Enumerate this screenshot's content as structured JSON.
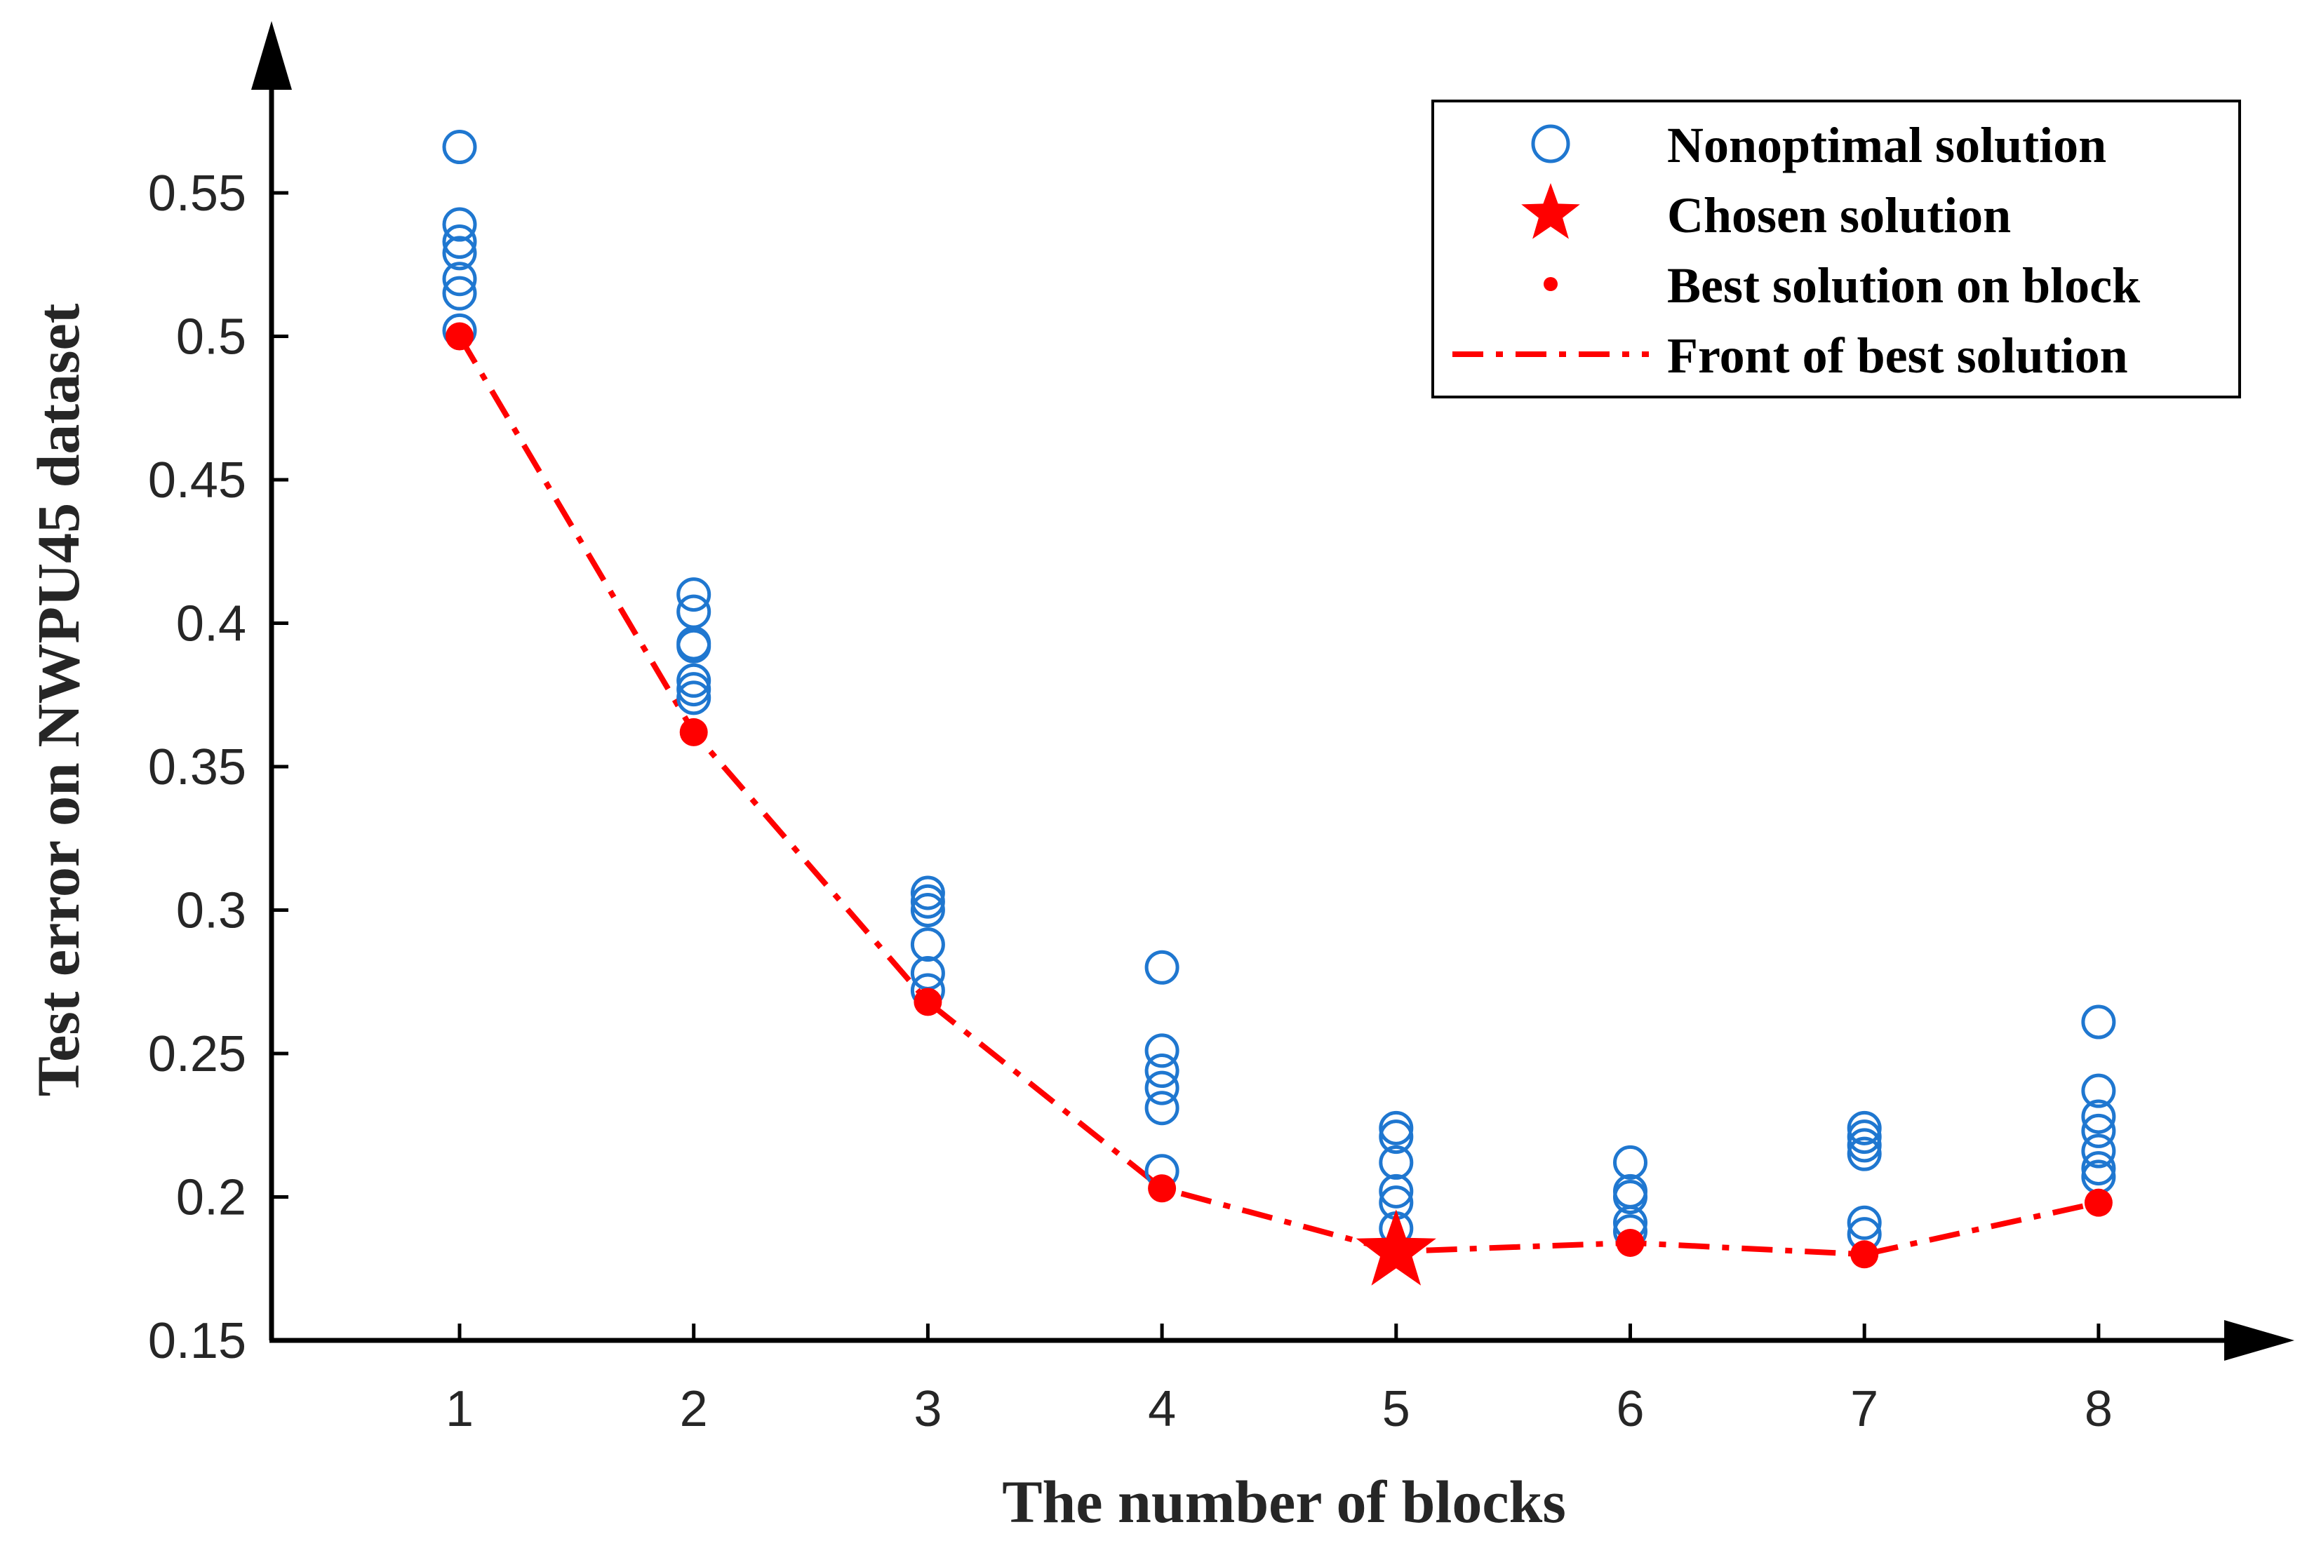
{
  "chart_data": {
    "type": "scatter",
    "title": "",
    "xlabel": "The number of blocks",
    "ylabel": "Test error on NWPU45 dataset",
    "xlim": [
      0.2,
      9.0
    ],
    "ylim": [
      0.15,
      0.59
    ],
    "x_ticks": [
      1,
      2,
      3,
      4,
      5,
      6,
      7,
      8
    ],
    "x_tick_labels": [
      "1",
      "2",
      "3",
      "4",
      "5",
      "6",
      "7",
      "8"
    ],
    "y_ticks": [
      0.15,
      0.2,
      0.25,
      0.3,
      0.35,
      0.4,
      0.45,
      0.5,
      0.55
    ],
    "y_tick_labels": [
      "0.15",
      "0.2",
      "0.25",
      "0.3",
      "0.35",
      "0.4",
      "0.45",
      "0.5",
      "0.55"
    ],
    "grid": false,
    "legend_position": "top-right",
    "series": [
      {
        "name": "Nonoptimal solution",
        "marker": "open-circle",
        "color": "#1f77d0",
        "points": [
          [
            1,
            0.566
          ],
          [
            1,
            0.539
          ],
          [
            1,
            0.533
          ],
          [
            1,
            0.529
          ],
          [
            1,
            0.52
          ],
          [
            1,
            0.515
          ],
          [
            1,
            0.502
          ],
          [
            2,
            0.41
          ],
          [
            2,
            0.404
          ],
          [
            2,
            0.393
          ],
          [
            2,
            0.392
          ],
          [
            2,
            0.38
          ],
          [
            2,
            0.377
          ],
          [
            2,
            0.374
          ],
          [
            3,
            0.306
          ],
          [
            3,
            0.303
          ],
          [
            3,
            0.3
          ],
          [
            3,
            0.288
          ],
          [
            3,
            0.278
          ],
          [
            3,
            0.272
          ],
          [
            4,
            0.28
          ],
          [
            4,
            0.251
          ],
          [
            4,
            0.244
          ],
          [
            4,
            0.238
          ],
          [
            4,
            0.231
          ],
          [
            4,
            0.209
          ],
          [
            5,
            0.224
          ],
          [
            5,
            0.221
          ],
          [
            5,
            0.212
          ],
          [
            5,
            0.202
          ],
          [
            5,
            0.198
          ],
          [
            5,
            0.189
          ],
          [
            6,
            0.212
          ],
          [
            6,
            0.202
          ],
          [
            6,
            0.2
          ],
          [
            6,
            0.191
          ],
          [
            6,
            0.188
          ],
          [
            7,
            0.224
          ],
          [
            7,
            0.221
          ],
          [
            7,
            0.218
          ],
          [
            7,
            0.215
          ],
          [
            7,
            0.191
          ],
          [
            7,
            0.187
          ],
          [
            8,
            0.261
          ],
          [
            8,
            0.237
          ],
          [
            8,
            0.228
          ],
          [
            8,
            0.223
          ],
          [
            8,
            0.216
          ],
          [
            8,
            0.21
          ],
          [
            8,
            0.207
          ]
        ]
      },
      {
        "name": "Chosen solution",
        "marker": "filled-star",
        "color": "#ff0000",
        "points": [
          [
            5,
            0.181
          ]
        ]
      },
      {
        "name": "Best solution on block",
        "marker": "filled-dot",
        "color": "#ff0000",
        "points": [
          [
            1,
            0.5
          ],
          [
            2,
            0.362
          ],
          [
            3,
            0.268
          ],
          [
            4,
            0.203
          ],
          [
            6,
            0.184
          ],
          [
            7,
            0.18
          ],
          [
            8,
            0.198
          ]
        ]
      },
      {
        "name": "Front of best solution",
        "marker": "dash-dot-line",
        "color": "#ff0000",
        "points": [
          [
            1,
            0.5
          ],
          [
            2,
            0.362
          ],
          [
            3,
            0.268
          ],
          [
            4,
            0.203
          ],
          [
            5,
            0.181
          ],
          [
            6,
            0.184
          ],
          [
            7,
            0.18
          ],
          [
            8,
            0.198
          ]
        ]
      }
    ]
  }
}
